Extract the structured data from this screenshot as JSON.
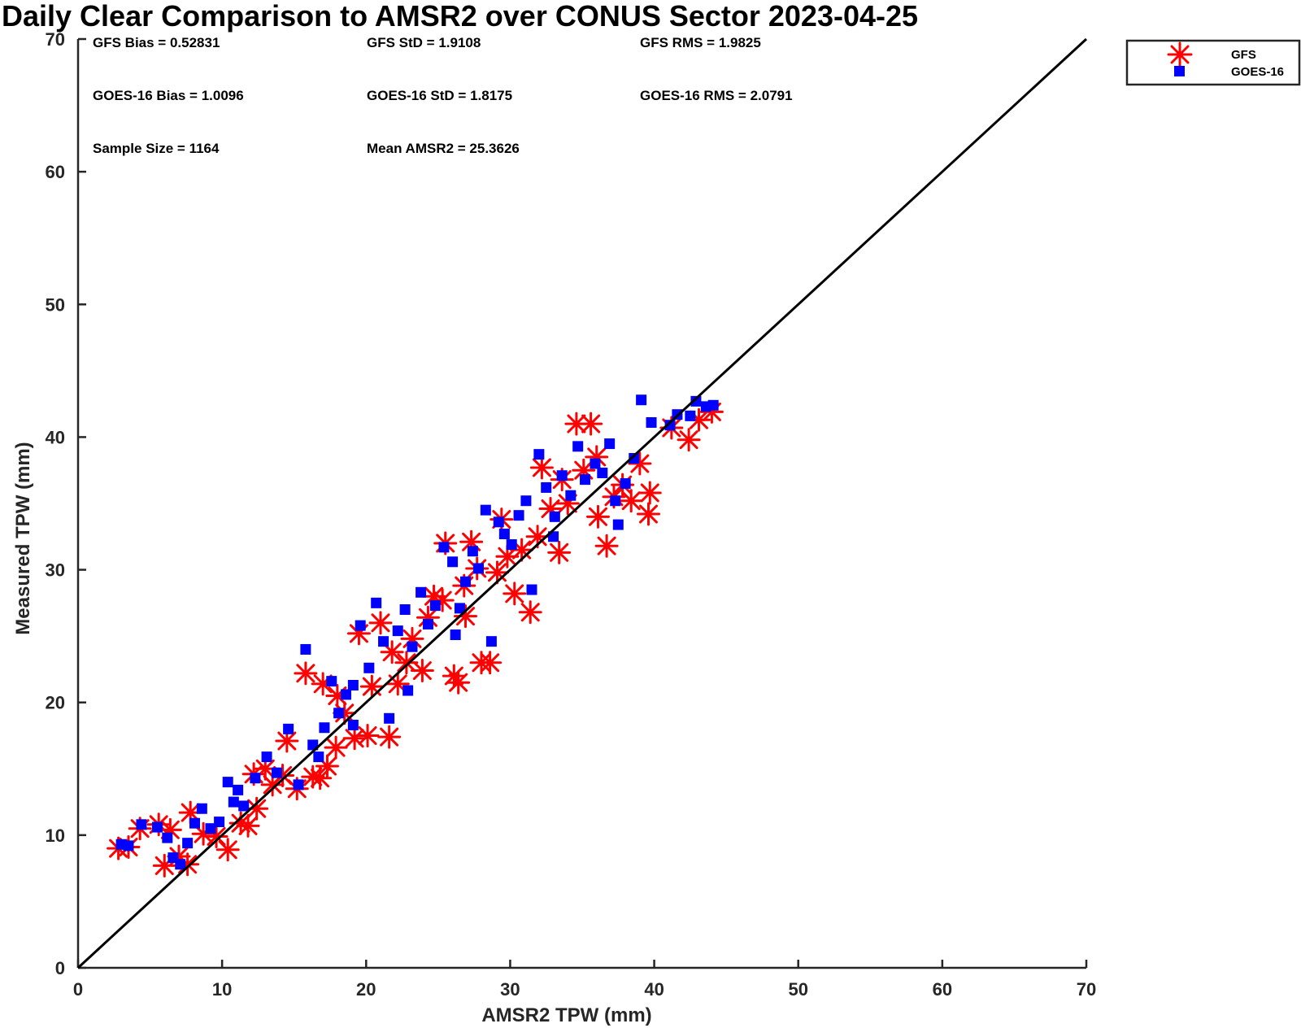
{
  "chart_data": {
    "type": "scatter",
    "title": "Daily Clear Comparison to AMSR2 over CONUS Sector 2023-04-25",
    "xlabel": "AMSR2 TPW (mm)",
    "ylabel": "Measured TPW (mm)",
    "xlim": [
      0,
      70
    ],
    "ylim": [
      0,
      70
    ],
    "xticks": [
      "0",
      "10",
      "20",
      "30",
      "40",
      "50",
      "60",
      "70"
    ],
    "yticks": [
      "0",
      "10",
      "20",
      "30",
      "40",
      "50",
      "60",
      "70"
    ],
    "grid": false,
    "legend_position": "top-right (outside plot)",
    "reference_line": {
      "type": "one-to-one",
      "from": [
        0,
        0
      ],
      "to": [
        70,
        70
      ],
      "color": "#000000"
    },
    "statistics": {
      "gfs_bias": "GFS Bias = 0.52831",
      "gfs_std": "GFS StD = 1.9108",
      "gfs_rms": "GFS RMS = 1.9825",
      "goes_bias": "GOES-16 Bias = 1.0096",
      "goes_std": "GOES-16 StD = 1.8175",
      "goes_rms": "GOES-16 RMS = 2.0791",
      "sample_size": "Sample Size = 1164",
      "mean_amsr2": "Mean AMSR2 = 25.3626"
    },
    "series": [
      {
        "name": "GFS",
        "marker": "asterisk",
        "color": "#ff0000",
        "points": [
          [
            2.8,
            9.0
          ],
          [
            3.5,
            9.1
          ],
          [
            4.3,
            10.5
          ],
          [
            5.6,
            10.8
          ],
          [
            6.0,
            7.7
          ],
          [
            6.4,
            10.4
          ],
          [
            7.0,
            8.4
          ],
          [
            7.6,
            7.8
          ],
          [
            7.8,
            11.7
          ],
          [
            8.7,
            10.1
          ],
          [
            9.6,
            9.9
          ],
          [
            10.4,
            8.9
          ],
          [
            11.3,
            10.9
          ],
          [
            11.8,
            10.7
          ],
          [
            12.2,
            14.6
          ],
          [
            13.0,
            15.0
          ],
          [
            13.5,
            13.8
          ],
          [
            14.2,
            14.5
          ],
          [
            14.5,
            17.1
          ],
          [
            15.2,
            13.5
          ],
          [
            15.8,
            22.2
          ],
          [
            16.3,
            14.4
          ],
          [
            16.8,
            14.3
          ],
          [
            17.3,
            15.2
          ],
          [
            17.9,
            16.6
          ],
          [
            18.5,
            19.2
          ],
          [
            19.2,
            17.3
          ],
          [
            19.5,
            25.2
          ],
          [
            20.1,
            17.5
          ],
          [
            20.4,
            21.2
          ],
          [
            21.0,
            26.0
          ],
          [
            21.6,
            17.4
          ],
          [
            22.2,
            21.4
          ],
          [
            22.8,
            23.0
          ],
          [
            23.2,
            24.8
          ],
          [
            23.9,
            22.4
          ],
          [
            24.3,
            26.4
          ],
          [
            24.7,
            28.0
          ],
          [
            25.5,
            32.0
          ],
          [
            26.1,
            22.0
          ],
          [
            26.4,
            21.5
          ],
          [
            26.8,
            28.8
          ],
          [
            27.3,
            32.1
          ],
          [
            27.7,
            30.1
          ],
          [
            28.0,
            23.0
          ],
          [
            28.6,
            23.0
          ],
          [
            29.1,
            29.8
          ],
          [
            29.4,
            33.8
          ],
          [
            29.8,
            31.0
          ],
          [
            30.3,
            28.2
          ],
          [
            30.8,
            31.5
          ],
          [
            31.4,
            26.8
          ],
          [
            31.9,
            32.5
          ],
          [
            32.2,
            37.7
          ],
          [
            32.8,
            34.6
          ],
          [
            33.4,
            31.3
          ],
          [
            34.0,
            35.0
          ],
          [
            34.6,
            41.0
          ],
          [
            35.1,
            37.5
          ],
          [
            35.6,
            41.0
          ],
          [
            36.1,
            34.0
          ],
          [
            36.7,
            31.8
          ],
          [
            37.2,
            35.5
          ],
          [
            37.8,
            36.4
          ],
          [
            38.4,
            35.2
          ],
          [
            39.0,
            38.0
          ],
          [
            39.6,
            34.2
          ],
          [
            39.7,
            35.8
          ],
          [
            41.2,
            40.7
          ],
          [
            42.4,
            39.8
          ],
          [
            43.1,
            41.3
          ],
          [
            44.0,
            41.9
          ],
          [
            17.0,
            21.4
          ],
          [
            18.0,
            20.5
          ],
          [
            21.8,
            23.8
          ],
          [
            25.3,
            27.7
          ],
          [
            26.9,
            26.5
          ],
          [
            33.6,
            36.8
          ],
          [
            36.0,
            38.5
          ],
          [
            12.4,
            12.0
          ]
        ]
      },
      {
        "name": "GOES-16",
        "marker": "square",
        "color": "#0000ff",
        "points": [
          [
            3.0,
            9.3
          ],
          [
            3.5,
            9.2
          ],
          [
            4.4,
            10.8
          ],
          [
            5.5,
            10.6
          ],
          [
            6.2,
            9.8
          ],
          [
            6.6,
            8.3
          ],
          [
            7.1,
            7.8
          ],
          [
            7.6,
            9.4
          ],
          [
            8.1,
            10.9
          ],
          [
            8.6,
            12.0
          ],
          [
            9.2,
            10.5
          ],
          [
            9.8,
            11.0
          ],
          [
            10.4,
            14.0
          ],
          [
            10.8,
            12.5
          ],
          [
            11.5,
            12.2
          ],
          [
            12.3,
            14.3
          ],
          [
            13.1,
            15.9
          ],
          [
            13.8,
            14.7
          ],
          [
            14.6,
            18.0
          ],
          [
            15.3,
            13.8
          ],
          [
            15.8,
            24.0
          ],
          [
            16.3,
            16.8
          ],
          [
            16.7,
            15.9
          ],
          [
            17.1,
            18.1
          ],
          [
            17.6,
            21.6
          ],
          [
            18.1,
            19.2
          ],
          [
            18.6,
            20.6
          ],
          [
            19.1,
            21.3
          ],
          [
            19.6,
            25.8
          ],
          [
            20.2,
            22.6
          ],
          [
            20.7,
            27.5
          ],
          [
            21.2,
            24.6
          ],
          [
            21.6,
            18.8
          ],
          [
            22.2,
            25.4
          ],
          [
            22.7,
            27.0
          ],
          [
            23.2,
            24.2
          ],
          [
            23.8,
            28.3
          ],
          [
            24.3,
            25.9
          ],
          [
            24.8,
            27.3
          ],
          [
            25.4,
            31.7
          ],
          [
            26.0,
            30.6
          ],
          [
            26.5,
            27.1
          ],
          [
            26.9,
            29.1
          ],
          [
            27.4,
            31.4
          ],
          [
            27.8,
            30.1
          ],
          [
            28.3,
            34.5
          ],
          [
            28.7,
            24.6
          ],
          [
            29.2,
            33.6
          ],
          [
            29.6,
            32.7
          ],
          [
            30.1,
            31.9
          ],
          [
            30.6,
            34.1
          ],
          [
            31.1,
            35.2
          ],
          [
            31.5,
            28.5
          ],
          [
            32.0,
            38.7
          ],
          [
            32.5,
            36.2
          ],
          [
            33.1,
            34.0
          ],
          [
            33.6,
            37.1
          ],
          [
            34.2,
            35.6
          ],
          [
            34.7,
            39.3
          ],
          [
            35.2,
            36.8
          ],
          [
            35.9,
            38.0
          ],
          [
            36.4,
            37.3
          ],
          [
            36.9,
            39.5
          ],
          [
            37.5,
            33.4
          ],
          [
            38.0,
            36.5
          ],
          [
            38.6,
            38.4
          ],
          [
            39.1,
            42.8
          ],
          [
            39.8,
            41.1
          ],
          [
            41.1,
            40.9
          ],
          [
            41.6,
            41.7
          ],
          [
            42.5,
            41.6
          ],
          [
            42.9,
            42.7
          ],
          [
            43.6,
            42.3
          ],
          [
            44.1,
            42.4
          ],
          [
            19.1,
            18.3
          ],
          [
            22.9,
            20.9
          ],
          [
            26.2,
            25.1
          ],
          [
            33.0,
            32.5
          ],
          [
            37.3,
            35.2
          ],
          [
            11.1,
            13.4
          ]
        ]
      }
    ]
  }
}
